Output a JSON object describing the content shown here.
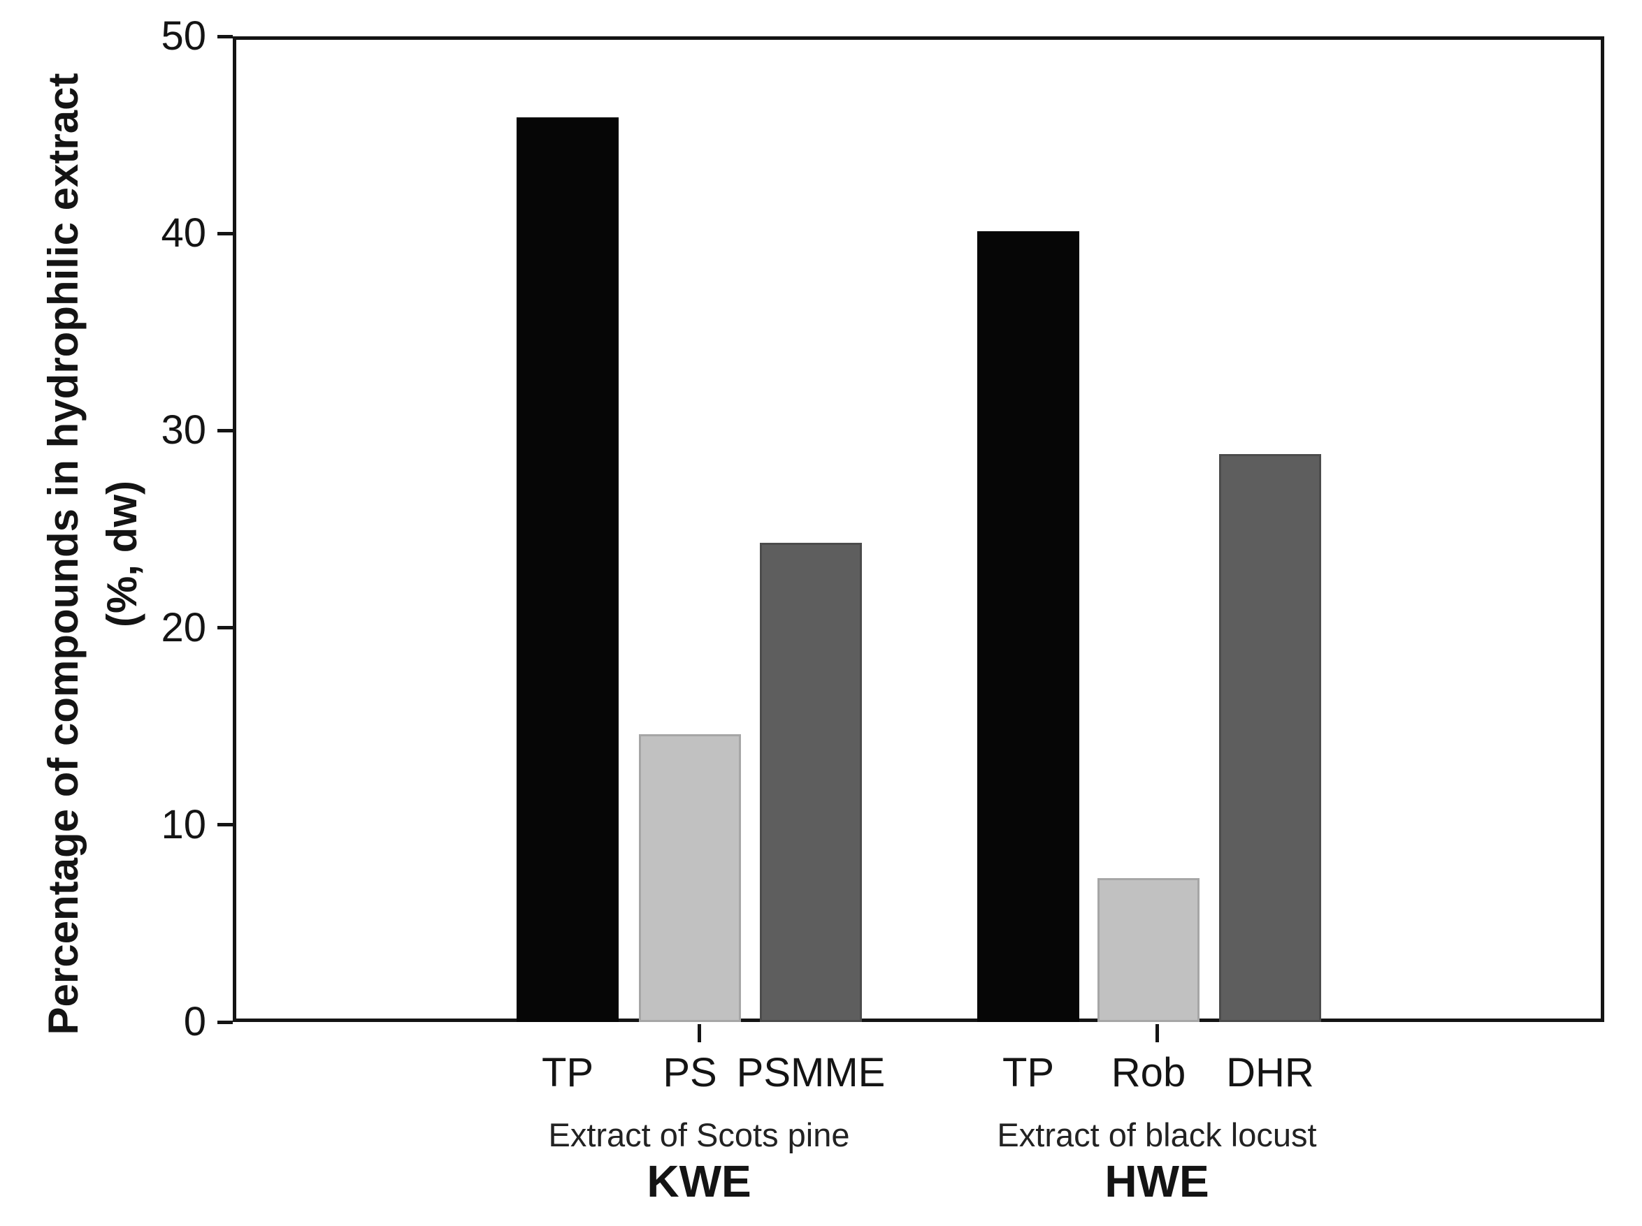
{
  "chart_data": {
    "type": "bar",
    "title": "",
    "ylabel_line1": "Percentage of compounds in hydrophilic extract",
    "ylabel_line2": "(%, dw)",
    "ylim": [
      0,
      50
    ],
    "yticks": [
      0,
      10,
      20,
      30,
      40,
      50
    ],
    "grid": false,
    "legend": "none",
    "frame": "full-box",
    "axis_color": "#141414",
    "groups": [
      {
        "name": "KWE",
        "sublabel": "Extract of Scots pine",
        "bars": [
          {
            "label": "TP",
            "value": 45.9,
            "fill": "#060606",
            "edge": "#060606"
          },
          {
            "label": "PS",
            "value": 14.6,
            "fill": "#c1c1c1",
            "edge": "#a6a6a6"
          },
          {
            "label": "PSMME",
            "value": 24.3,
            "fill": "#5e5e5e",
            "edge": "#4c4c4c"
          }
        ]
      },
      {
        "name": "HWE",
        "sublabel": "Extract of black locust",
        "bars": [
          {
            "label": "TP",
            "value": 40.1,
            "fill": "#060606",
            "edge": "#060606"
          },
          {
            "label": "Rob",
            "value": 7.3,
            "fill": "#c1c1c1",
            "edge": "#a6a6a6"
          },
          {
            "label": "DHR",
            "value": 28.8,
            "fill": "#5e5e5e",
            "edge": "#4c4c4c"
          }
        ]
      }
    ]
  }
}
